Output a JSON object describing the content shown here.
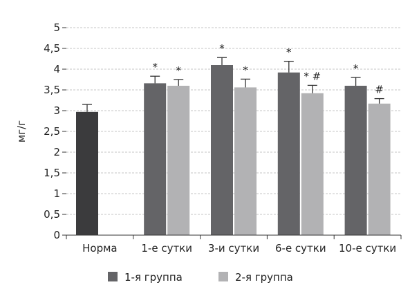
{
  "chart_data": {
    "type": "bar",
    "ylabel": "мг/г",
    "ylim": [
      0,
      5
    ],
    "yticks": [
      "0",
      "0,5",
      "1",
      "1,5",
      "2",
      "2,5",
      "3",
      "3,5",
      "4",
      "4,5",
      "5"
    ],
    "grid": true,
    "categories": [
      "Норма",
      "1-е сутки",
      "3-и сутки",
      "6-е сутки",
      "10-е сутки"
    ],
    "norm": {
      "value": 2.97,
      "error": 0.18,
      "color": "#3b3b3d"
    },
    "series": [
      {
        "name": "1-я группа",
        "color": "#646467",
        "values": [
          null,
          3.66,
          4.1,
          3.92,
          3.6
        ],
        "errors": [
          null,
          0.17,
          0.18,
          0.27,
          0.2
        ],
        "marks": [
          null,
          "*",
          "*",
          "*",
          "*"
        ]
      },
      {
        "name": "2-я группа",
        "color": "#b2b2b4",
        "values": [
          null,
          3.6,
          3.56,
          3.42,
          3.17
        ],
        "errors": [
          null,
          0.15,
          0.2,
          0.19,
          0.12
        ],
        "marks": [
          null,
          "*",
          "*",
          "* #",
          "#"
        ]
      }
    ],
    "legend_position": "bottom"
  }
}
